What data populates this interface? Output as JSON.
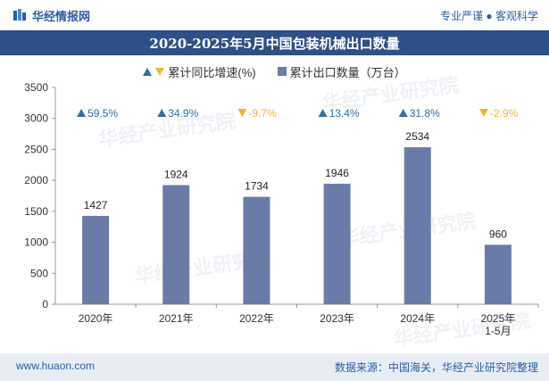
{
  "header": {
    "brand": "华经情报网",
    "tagline": "专业严谨 ● 客观科学"
  },
  "title": "2020-2025年5月中国包装机械出口数量",
  "legend": {
    "growth": "累计同比增速(%)",
    "quantity": "累计出口数量（万台）"
  },
  "footer": {
    "website": "www.huaon.com",
    "source": "数据来源：中国海关，华经产业研究院整理"
  },
  "watermark": "华经产业研究院",
  "colors": {
    "bar": "#6b7ba8",
    "up": "#2f6fa8",
    "down": "#f2b52a",
    "title_bg": "#2f4f87"
  },
  "chart_data": {
    "type": "bar",
    "categories": [
      "2020年",
      "2021年",
      "2022年",
      "2023年",
      "2024年",
      "2025年 1-5月"
    ],
    "category_lines": [
      [
        "2020年"
      ],
      [
        "2021年"
      ],
      [
        "2022年"
      ],
      [
        "2023年"
      ],
      [
        "2024年"
      ],
      [
        "2025年",
        "1-5月"
      ]
    ],
    "series": [
      {
        "name": "累计出口数量（万台）",
        "values": [
          1427,
          1924,
          1734,
          1946,
          2534,
          960
        ]
      }
    ],
    "growth": {
      "name": "累计同比增速(%)",
      "values": [
        59.5,
        34.9,
        -9.7,
        13.4,
        31.8,
        -2.9
      ],
      "labels": [
        "59.5%",
        "34.9%",
        "-9.7%",
        "13.4%",
        "31.8%",
        "-2.9%"
      ]
    },
    "ylim": [
      0,
      3500
    ],
    "yticks": [
      0,
      500,
      1000,
      1500,
      2000,
      2500,
      3000,
      3500
    ],
    "grid": false,
    "legend_position": "top-center"
  }
}
